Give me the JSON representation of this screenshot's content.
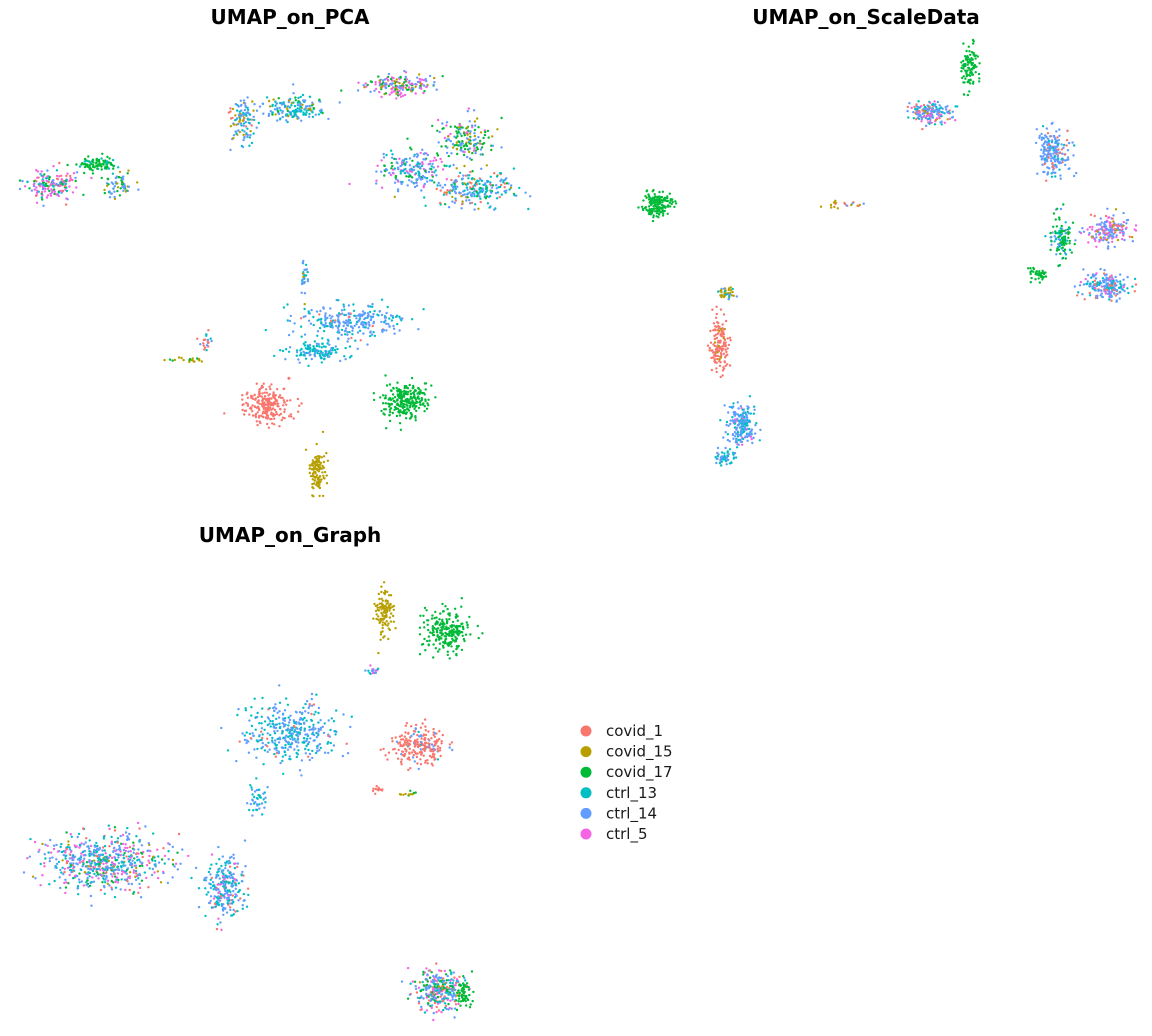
{
  "chart_data": [
    {
      "type": "scatter",
      "title": "UMAP_on_PCA",
      "xlabel": "",
      "ylabel": "",
      "grid": false,
      "axes_visible": false,
      "xlim": [
        -12,
        12
      ],
      "ylim": [
        -12,
        12
      ],
      "clusters": [
        {
          "center": [
            -10.6,
            4.5
          ],
          "spread": [
            1.0,
            0.7
          ],
          "n": 170,
          "mix": {
            "ctrl_5": 0.32,
            "ctrl_14": 0.18,
            "ctrl_13": 0.15,
            "covid_1": 0.15,
            "covid_17": 0.2
          }
        },
        {
          "center": [
            -8.5,
            5.5
          ],
          "spread": [
            0.8,
            0.35
          ],
          "n": 90,
          "mix": {
            "covid_17": 0.85,
            "ctrl_13": 0.15
          }
        },
        {
          "center": [
            -7.6,
            4.4
          ],
          "spread": [
            0.6,
            0.7
          ],
          "n": 60,
          "mix": {
            "ctrl_14": 0.45,
            "covid_17": 0.35,
            "covid_15": 0.2
          }
        },
        {
          "center": [
            -2.1,
            7.9
          ],
          "spread": [
            0.55,
            1.1
          ],
          "n": 110,
          "mix": {
            "ctrl_14": 0.45,
            "ctrl_13": 0.3,
            "covid_15": 0.15,
            "covid_1": 0.1
          }
        },
        {
          "center": [
            0.3,
            8.4
          ],
          "spread": [
            1.2,
            0.6
          ],
          "n": 160,
          "mix": {
            "ctrl_13": 0.45,
            "ctrl_14": 0.35,
            "covid_15": 0.1,
            "covid_17": 0.1
          }
        },
        {
          "center": [
            4.8,
            9.6
          ],
          "spread": [
            1.4,
            0.5
          ],
          "n": 180,
          "mix": {
            "ctrl_5": 0.4,
            "ctrl_14": 0.3,
            "covid_15": 0.15,
            "covid_17": 0.15
          }
        },
        {
          "center": [
            7.8,
            6.8
          ],
          "spread": [
            1.0,
            1.1
          ],
          "n": 160,
          "mix": {
            "covid_17": 0.45,
            "ctrl_14": 0.3,
            "covid_15": 0.15,
            "ctrl_5": 0.1
          }
        },
        {
          "center": [
            5.5,
            5.3
          ],
          "spread": [
            1.5,
            0.9
          ],
          "n": 200,
          "mix": {
            "ctrl_14": 0.45,
            "ctrl_5": 0.25,
            "ctrl_13": 0.2,
            "covid_17": 0.1
          }
        },
        {
          "center": [
            8.3,
            4.2
          ],
          "spread": [
            1.6,
            0.8
          ],
          "n": 220,
          "mix": {
            "ctrl_13": 0.35,
            "ctrl_14": 0.4,
            "covid_1": 0.1,
            "covid_17": 0.1,
            "covid_15": 0.05
          }
        },
        {
          "center": [
            2.8,
            -2.7
          ],
          "spread": [
            2.2,
            0.8
          ],
          "n": 260,
          "mix": {
            "ctrl_14": 0.65,
            "ctrl_13": 0.3,
            "covid_1": 0.05
          }
        },
        {
          "center": [
            1.3,
            -4.2
          ],
          "spread": [
            1.2,
            0.5
          ],
          "n": 120,
          "mix": {
            "ctrl_13": 0.65,
            "ctrl_14": 0.35
          }
        },
        {
          "center": [
            0.6,
            -0.3
          ],
          "spread": [
            0.15,
            0.8
          ],
          "n": 30,
          "mix": {
            "ctrl_14": 0.6,
            "ctrl_13": 0.25,
            "covid_15": 0.15
          }
        },
        {
          "center": [
            -1.0,
            -7.0
          ],
          "spread": [
            0.9,
            0.9
          ],
          "n": 230,
          "mix": {
            "covid_1": 1.0
          }
        },
        {
          "center": [
            5.1,
            -6.8
          ],
          "spread": [
            0.9,
            0.9
          ],
          "n": 260,
          "mix": {
            "covid_17": 1.0
          }
        },
        {
          "center": [
            1.2,
            -10.5
          ],
          "spread": [
            0.35,
            1.0
          ],
          "n": 110,
          "mix": {
            "covid_15": 1.0
          }
        },
        {
          "center": [
            -4.6,
            -4.7
          ],
          "spread": [
            0.9,
            0.12
          ],
          "n": 20,
          "mix": {
            "covid_15": 0.7,
            "covid_17": 0.3
          }
        },
        {
          "center": [
            -3.8,
            -3.8
          ],
          "spread": [
            0.25,
            0.4
          ],
          "n": 20,
          "mix": {
            "covid_1": 0.5,
            "ctrl_14": 0.3,
            "ctrl_13": 0.2
          }
        }
      ]
    },
    {
      "type": "scatter",
      "title": "UMAP_on_ScaleData",
      "xlabel": "",
      "ylabel": "",
      "grid": false,
      "axes_visible": false,
      "xlim": [
        -12,
        12
      ],
      "ylim": [
        -12,
        12
      ],
      "clusters": [
        {
          "center": [
            2.9,
            8.2
          ],
          "spread": [
            0.9,
            0.45
          ],
          "n": 170,
          "mix": {
            "ctrl_14": 0.4,
            "ctrl_5": 0.2,
            "ctrl_13": 0.2,
            "covid_1": 0.15,
            "covid_15": 0.05
          }
        },
        {
          "center": [
            4.6,
            10.6
          ],
          "spread": [
            0.35,
            0.9
          ],
          "n": 100,
          "mix": {
            "covid_17": 1.0
          }
        },
        {
          "center": [
            -9.3,
            3.4
          ],
          "spread": [
            0.6,
            0.55
          ],
          "n": 170,
          "mix": {
            "covid_17": 1.0
          }
        },
        {
          "center": [
            -1.1,
            3.4
          ],
          "spread": [
            0.9,
            0.15
          ],
          "n": 20,
          "mix": {
            "covid_15": 0.5,
            "covid_1": 0.3,
            "ctrl_14": 0.2
          }
        },
        {
          "center": [
            -6.3,
            -1.2
          ],
          "spread": [
            0.45,
            0.3
          ],
          "n": 40,
          "mix": {
            "covid_15": 0.5,
            "ctrl_13": 0.3,
            "ctrl_14": 0.2
          }
        },
        {
          "center": [
            -6.5,
            -3.9
          ],
          "spread": [
            0.35,
            1.3
          ],
          "n": 150,
          "mix": {
            "covid_1": 0.9,
            "covid_15": 0.1
          }
        },
        {
          "center": [
            -5.5,
            -8.1
          ],
          "spread": [
            0.55,
            1.0
          ],
          "n": 200,
          "mix": {
            "ctrl_14": 0.55,
            "ctrl_13": 0.4,
            "ctrl_5": 0.05
          }
        },
        {
          "center": [
            -6.2,
            -9.8
          ],
          "spread": [
            0.45,
            0.4
          ],
          "n": 50,
          "mix": {
            "ctrl_13": 0.6,
            "ctrl_14": 0.4
          }
        },
        {
          "center": [
            8.3,
            6.1
          ],
          "spread": [
            0.7,
            1.1
          ],
          "n": 200,
          "mix": {
            "ctrl_14": 0.7,
            "covid_1": 0.15,
            "ctrl_13": 0.15
          }
        },
        {
          "center": [
            10.8,
            2.1
          ],
          "spread": [
            0.9,
            0.6
          ],
          "n": 180,
          "mix": {
            "ctrl_5": 0.35,
            "ctrl_14": 0.45,
            "covid_15": 0.1,
            "covid_1": 0.1
          }
        },
        {
          "center": [
            8.7,
            1.6
          ],
          "spread": [
            0.45,
            1.0
          ],
          "n": 110,
          "mix": {
            "covid_17": 0.55,
            "ctrl_14": 0.25,
            "ctrl_13": 0.2
          }
        },
        {
          "center": [
            10.7,
            -0.8
          ],
          "spread": [
            1.0,
            0.6
          ],
          "n": 200,
          "mix": {
            "ctrl_14": 0.5,
            "ctrl_13": 0.25,
            "covid_1": 0.15,
            "ctrl_5": 0.1
          }
        },
        {
          "center": [
            7.7,
            -0.2
          ],
          "spread": [
            0.35,
            0.3
          ],
          "n": 40,
          "mix": {
            "covid_17": 1.0
          }
        }
      ]
    },
    {
      "type": "scatter",
      "title": "UMAP_on_Graph",
      "xlabel": "",
      "ylabel": "",
      "grid": false,
      "axes_visible": false,
      "xlim": [
        -12,
        12
      ],
      "ylim": [
        -12,
        12
      ],
      "legend": {
        "placement": "right",
        "entries": [
          {
            "label": "covid_1",
            "color": "#F8766D"
          },
          {
            "label": "covid_15",
            "color": "#B79F00"
          },
          {
            "label": "covid_17",
            "color": "#00BA38"
          },
          {
            "label": "ctrl_13",
            "color": "#00BFC4"
          },
          {
            "label": "ctrl_14",
            "color": "#619CFF"
          },
          {
            "label": "ctrl_5",
            "color": "#F564E3"
          }
        ]
      },
      "clusters": [
        {
          "center": [
            4.2,
            9.3
          ],
          "spread": [
            0.35,
            1.1
          ],
          "n": 110,
          "mix": {
            "covid_15": 1.0
          }
        },
        {
          "center": [
            7.0,
            8.3
          ],
          "spread": [
            0.9,
            1.0
          ],
          "n": 230,
          "mix": {
            "covid_17": 1.0
          }
        },
        {
          "center": [
            3.7,
            6.2
          ],
          "spread": [
            0.25,
            0.25
          ],
          "n": 20,
          "mix": {
            "ctrl_5": 0.4,
            "ctrl_14": 0.3,
            "ctrl_13": 0.3
          }
        },
        {
          "center": [
            0.0,
            3.0
          ],
          "spread": [
            1.9,
            1.4
          ],
          "n": 360,
          "mix": {
            "ctrl_14": 0.55,
            "ctrl_13": 0.4,
            "covid_1": 0.05
          }
        },
        {
          "center": [
            5.7,
            2.3
          ],
          "spread": [
            1.2,
            0.9
          ],
          "n": 220,
          "mix": {
            "covid_1": 0.85,
            "ctrl_14": 0.1,
            "ctrl_13": 0.05
          }
        },
        {
          "center": [
            3.9,
            0.0
          ],
          "spread": [
            0.2,
            0.2
          ],
          "n": 12,
          "mix": {
            "covid_1": 1.0
          }
        },
        {
          "center": [
            5.2,
            -0.2
          ],
          "spread": [
            0.4,
            0.12
          ],
          "n": 12,
          "mix": {
            "covid_15": 0.6,
            "covid_17": 0.4
          }
        },
        {
          "center": [
            -1.4,
            -0.5
          ],
          "spread": [
            0.5,
            0.8
          ],
          "n": 40,
          "mix": {
            "ctrl_14": 0.5,
            "ctrl_13": 0.5
          }
        },
        {
          "center": [
            -8.2,
            -3.8
          ],
          "spread": [
            2.4,
            1.3
          ],
          "n": 620,
          "mix": {
            "ctrl_14": 0.3,
            "ctrl_13": 0.22,
            "ctrl_5": 0.22,
            "covid_1": 0.1,
            "covid_17": 0.1,
            "covid_15": 0.06
          }
        },
        {
          "center": [
            -2.9,
            -5.2
          ],
          "spread": [
            0.8,
            1.4
          ],
          "n": 250,
          "mix": {
            "ctrl_14": 0.4,
            "ctrl_13": 0.4,
            "covid_1": 0.1,
            "ctrl_5": 0.1
          }
        },
        {
          "center": [
            6.6,
            -10.5
          ],
          "spread": [
            1.0,
            1.0
          ],
          "n": 300,
          "mix": {
            "ctrl_14": 0.3,
            "ctrl_5": 0.2,
            "ctrl_13": 0.15,
            "covid_1": 0.15,
            "covid_17": 0.15,
            "covid_15": 0.05
          }
        },
        {
          "center": [
            7.7,
            -10.6
          ],
          "spread": [
            0.35,
            0.8
          ],
          "n": 60,
          "mix": {
            "covid_17": 1.0
          }
        }
      ]
    }
  ]
}
